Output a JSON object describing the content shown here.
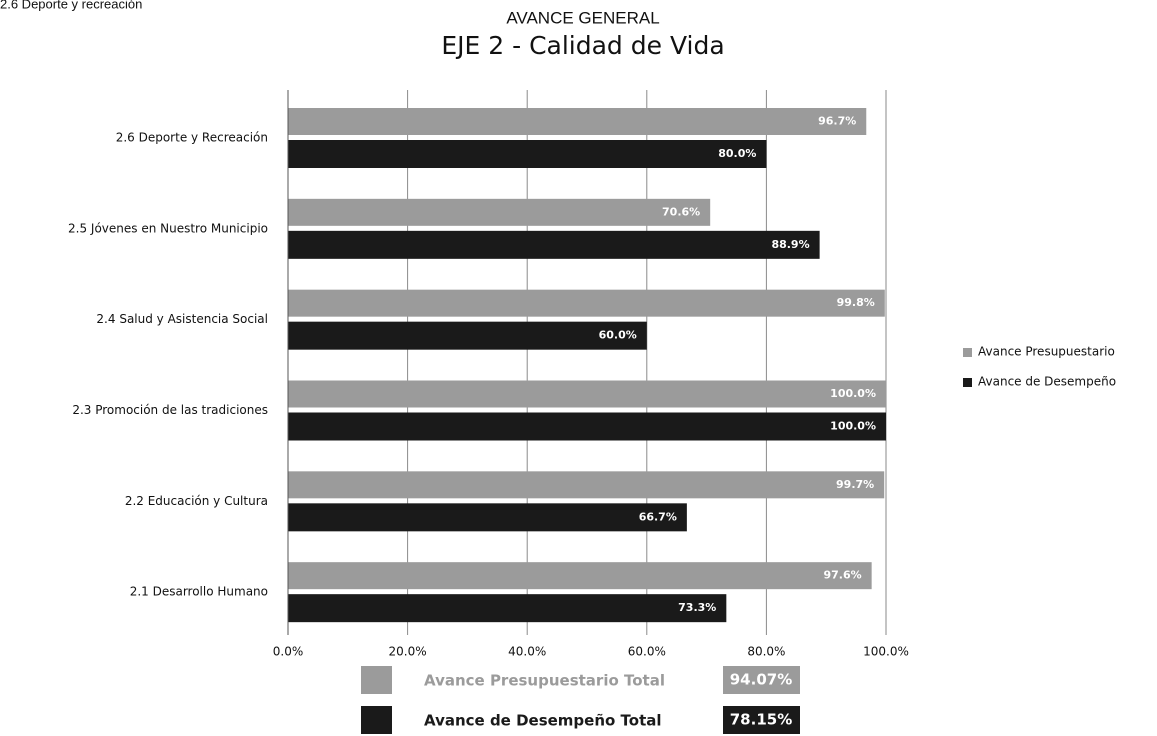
{
  "header": {
    "section": "2.6  Deporte y recreación"
  },
  "chart_data": {
    "type": "hbar",
    "title": "AVANCE GENERAL",
    "subtitle": "EJE 2 - Calidad de Vida",
    "categories": [
      "2.6 Deporte y Recreación",
      "2.5 Jóvenes en Nuestro Municipio",
      "2.4 Salud y Asistencia Social",
      "2.3 Promoción de las tradiciones",
      "2.2 Educación y Cultura",
      "2.1 Desarrollo Humano"
    ],
    "series": [
      {
        "name": "Avance Presupuestario",
        "color": "#9b9b9b",
        "values": [
          96.7,
          70.6,
          99.8,
          100,
          99.7,
          97.6
        ],
        "value_labels": [
          "96.7%",
          "70.6%",
          "99.8%",
          "100.0%",
          "99.7%",
          "97.6%"
        ]
      },
      {
        "name": "Avance de Desempeño",
        "color": "#1a1a1a",
        "values": [
          80,
          88.9,
          60,
          100,
          66.7,
          73.3
        ],
        "value_labels": [
          "80.0%",
          "88.9%",
          "60.0%",
          "100.0%",
          "66.7%",
          "73.3%"
        ]
      }
    ],
    "xlim": [
      0,
      100
    ],
    "xticks": [
      {
        "value": 0,
        "label": "0.0%"
      },
      {
        "value": 20,
        "label": "20.0%"
      },
      {
        "value": 40,
        "label": "40.0%"
      },
      {
        "value": 60,
        "label": "60.0%"
      },
      {
        "value": 80,
        "label": "80.0%"
      },
      {
        "value": 100,
        "label": "100.0%"
      }
    ],
    "grid": true,
    "legend": "right"
  },
  "totals": [
    {
      "name": "Avance Presupuestario Total",
      "label": "94.07%",
      "color": "#9b9b9b"
    },
    {
      "name": "Avance de Desempeño Total",
      "label": "78.15%",
      "color": "#1a1a1a"
    }
  ]
}
